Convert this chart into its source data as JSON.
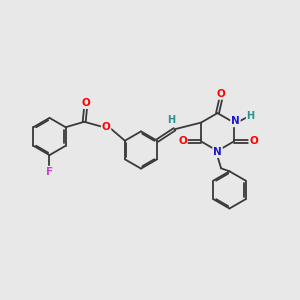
{
  "background_color": "#e8e8e8",
  "bond_color": "#3a3a3a",
  "atom_colors": {
    "O": "#ff0000",
    "N": "#1a1acc",
    "F": "#cc44cc",
    "H": "#2a9090",
    "C": "#3a3a3a"
  },
  "fs": 7.5,
  "lw": 1.3,
  "doff": 0.055,
  "r_hex": 0.62,
  "xlim": [
    0,
    10
  ],
  "ylim": [
    0,
    10
  ]
}
